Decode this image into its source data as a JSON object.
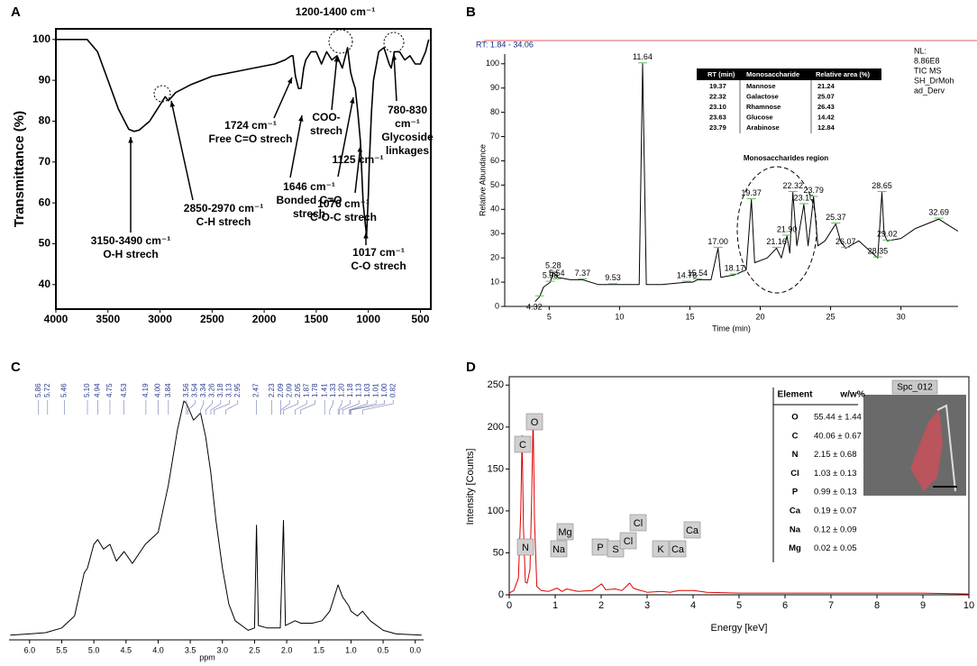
{
  "chart_data": [
    {
      "panel": "A",
      "type": "line",
      "ylabel": "Transmittance (%)",
      "color": "#000000",
      "x": [
        4000,
        3700,
        3600,
        3500,
        3400,
        3300,
        3250,
        3200,
        3100,
        3000,
        2950,
        2920,
        2850,
        2700,
        2500,
        2300,
        2100,
        1900,
        1800,
        1740,
        1724,
        1700,
        1670,
        1646,
        1620,
        1600,
        1550,
        1500,
        1450,
        1400,
        1350,
        1300,
        1250,
        1200,
        1170,
        1150,
        1125,
        1100,
        1076,
        1050,
        1030,
        1017,
        1000,
        990,
        970,
        950,
        900,
        850,
        800,
        780,
        750,
        700,
        650,
        600,
        550,
        500,
        450,
        420
      ],
      "values": [
        100,
        100,
        97,
        90,
        83,
        78,
        77.5,
        77.8,
        80,
        84,
        86,
        85,
        87,
        89,
        91,
        92,
        93,
        94,
        95,
        96,
        96,
        91,
        88,
        88,
        93,
        95,
        97,
        97,
        94,
        97,
        95,
        96,
        93,
        98,
        92,
        90,
        88,
        82,
        75,
        60,
        55,
        52,
        62,
        70,
        82,
        90,
        97,
        98,
        94,
        93,
        97,
        97,
        95,
        96,
        94,
        94,
        97,
        100
      ],
      "xlim": [
        4000,
        400
      ],
      "ylim": [
        34,
        102.6
      ],
      "xticks": [
        4000,
        3500,
        3000,
        2500,
        2000,
        1500,
        1000,
        500
      ],
      "yticks": [
        40,
        50,
        60,
        70,
        80,
        90,
        100
      ],
      "annotations": [
        {
          "lines": [
            "3150-3490 cm⁻¹",
            "O-H strech"
          ]
        },
        {
          "lines": [
            "2850-2970 cm⁻¹",
            "C-H strech"
          ]
        },
        {
          "lines": [
            "1724 cm⁻¹",
            "Free C=O strech"
          ]
        },
        {
          "lines": [
            "1646 cm⁻¹",
            "Bonded C=O",
            "strech"
          ]
        },
        {
          "lines": [
            "1200-1400 cm⁻¹"
          ]
        },
        {
          "lines": [
            "COO-",
            "strech"
          ]
        },
        {
          "lines": [
            "1125 cm⁻¹"
          ]
        },
        {
          "lines": [
            "1076 cm⁻¹",
            "C-O-C strech"
          ]
        },
        {
          "lines": [
            "1017 cm⁻¹",
            "C-O strech"
          ]
        },
        {
          "lines": [
            "780-830",
            "cm⁻¹",
            "Glycoside",
            "linkages"
          ]
        }
      ]
    },
    {
      "panel": "B",
      "type": "line",
      "rt": "RT: 1.84 - 34.06",
      "info": [
        "NL:",
        "8.86E8",
        "TIC  MS",
        "SH_DrMoh",
        "ad_Derv"
      ],
      "xlabel": "Time (min)",
      "ylabel": "Relative Abundance",
      "color": "#000000",
      "x": [
        4.0,
        4.32,
        4.6,
        5.08,
        5.28,
        5.6,
        6.5,
        7.37,
        8.5,
        9.53,
        10.5,
        11.4,
        11.64,
        11.9,
        13,
        14.78,
        15.2,
        15.54,
        16.5,
        17.0,
        17.2,
        18.17,
        19.0,
        19.37,
        19.6,
        20.5,
        21.16,
        21.5,
        21.9,
        22.1,
        22.32,
        22.6,
        23.1,
        23.4,
        23.79,
        24.1,
        24.6,
        25.37,
        25.7,
        26.07,
        27,
        28.35,
        28.65,
        28.8,
        29.02,
        30,
        31,
        32.69,
        33.5,
        34.06
      ],
      "values": [
        2,
        4,
        8,
        10,
        14,
        12,
        11,
        11,
        9,
        9,
        9,
        9,
        100,
        9,
        9,
        10,
        10,
        11,
        11,
        24,
        12,
        13,
        15,
        44,
        18,
        20,
        24,
        20,
        29,
        22,
        47,
        25,
        42,
        25,
        45,
        25,
        27,
        34,
        27,
        24,
        27,
        20,
        47,
        30,
        27,
        28,
        32,
        36,
        33,
        31
      ],
      "xlim": [
        1.84,
        34.06
      ],
      "ylim": [
        0,
        104
      ],
      "xticks": [
        5,
        10,
        15,
        20,
        25,
        30
      ],
      "yticks": [
        0,
        10,
        20,
        30,
        40,
        50,
        60,
        70,
        80,
        90,
        100
      ],
      "peaks": [
        {
          "label": "4.32",
          "x": 4.32,
          "y": 4
        },
        {
          "label": "5.08",
          "x": 5.08,
          "y": 10
        },
        {
          "label": "5.28",
          "x": 5.28,
          "y": 14
        },
        {
          "label": "5.54",
          "x": 5.54,
          "y": 11
        },
        {
          "label": "7.37",
          "x": 7.37,
          "y": 11
        },
        {
          "label": "9.53",
          "x": 9.53,
          "y": 9
        },
        {
          "label": "11.64",
          "x": 11.64,
          "y": 100
        },
        {
          "label": "14.78",
          "x": 14.78,
          "y": 10
        },
        {
          "label": "15.54",
          "x": 15.54,
          "y": 11
        },
        {
          "label": "17.00",
          "x": 17.0,
          "y": 24
        },
        {
          "label": "18.17",
          "x": 18.17,
          "y": 13
        },
        {
          "label": "19.37",
          "x": 19.37,
          "y": 44
        },
        {
          "label": "21.16",
          "x": 21.16,
          "y": 24
        },
        {
          "label": "21.90",
          "x": 21.9,
          "y": 29
        },
        {
          "label": "22.32",
          "x": 22.32,
          "y": 47
        },
        {
          "label": "23.10",
          "x": 23.1,
          "y": 42
        },
        {
          "label": "23.79",
          "x": 23.79,
          "y": 45
        },
        {
          "label": "25.37",
          "x": 25.37,
          "y": 34
        },
        {
          "label": "26.07",
          "x": 26.07,
          "y": 24
        },
        {
          "label": "28.35",
          "x": 28.35,
          "y": 20
        },
        {
          "label": "28.65",
          "x": 28.65,
          "y": 47
        },
        {
          "label": "29.02",
          "x": 29.02,
          "y": 27
        },
        {
          "label": "32.69",
          "x": 32.69,
          "y": 36
        }
      ],
      "region_label": "Monosaccharides region",
      "table": {
        "columns": [
          "RT (min)",
          "Monosaccharide",
          "Relative area (%)"
        ],
        "rows": [
          [
            "19.37",
            "Mannose",
            "21.24"
          ],
          [
            "22.32",
            "Galactose",
            "25.07"
          ],
          [
            "23.10",
            "Rhamnose",
            "26.43"
          ],
          [
            "23.63",
            "Glucose",
            "14.42"
          ],
          [
            "23.79",
            "Arabinose",
            "12.84"
          ]
        ]
      }
    },
    {
      "panel": "C",
      "type": "line",
      "xlabel": "ppm",
      "color": "#000000",
      "x": [
        6.3,
        6.0,
        5.75,
        5.5,
        5.3,
        5.15,
        5.1,
        5.0,
        4.94,
        4.85,
        4.75,
        4.65,
        4.53,
        4.4,
        4.2,
        4.0,
        3.84,
        3.7,
        3.6,
        3.56,
        3.45,
        3.34,
        3.26,
        3.18,
        3.1,
        3.0,
        2.9,
        2.8,
        2.6,
        2.5,
        2.47,
        2.44,
        2.3,
        2.1,
        2.05,
        2.02,
        1.87,
        1.78,
        1.6,
        1.45,
        1.33,
        1.2,
        1.13,
        1.03,
        1.0,
        0.9,
        0.82,
        0.7,
        0.5,
        0.3,
        -0.1
      ],
      "values": [
        2,
        2.5,
        3,
        5,
        10,
        28,
        30,
        40,
        42,
        38,
        40,
        33,
        37,
        32,
        40,
        45,
        65,
        88,
        100,
        99,
        92,
        95,
        85,
        70,
        50,
        30,
        15,
        8,
        4,
        5,
        48,
        6,
        5,
        5,
        50,
        6,
        8,
        7,
        7,
        8,
        12,
        23,
        18,
        14,
        12,
        10,
        12,
        8,
        4,
        2.5,
        2
      ],
      "xlim": [
        6.32,
        -0.13
      ],
      "ylim": [
        0,
        100
      ],
      "xticks": [
        {
          "value": 6,
          "label": "6.0"
        },
        5.5,
        {
          "value": 5,
          "label": "5.0"
        },
        4.5,
        {
          "value": 4,
          "label": "4.0"
        },
        3.5,
        {
          "value": 3,
          "label": "3.0"
        },
        2.5,
        {
          "value": 2,
          "label": "2.0"
        },
        1.5,
        {
          "value": 1,
          "label": "1.0"
        },
        0.5,
        {
          "value": 0,
          "label": "0.0"
        }
      ],
      "peak_labels": [
        {
          "x": 5.86,
          "label": "5.86"
        },
        {
          "x": 5.72,
          "label": "5.72"
        },
        {
          "x": 5.46,
          "label": "5.46"
        },
        {
          "x": 5.1,
          "label": "5.10"
        },
        {
          "x": 4.94,
          "label": "4.94"
        },
        {
          "x": 4.75,
          "label": "4.75"
        },
        {
          "x": 4.53,
          "label": "4.53"
        },
        {
          "x": 4.19,
          "label": "4.19"
        },
        {
          "x": 4.0,
          "label": "4.00"
        },
        {
          "x": 3.84,
          "label": "3.84"
        },
        {
          "x": 3.56,
          "label": "3.56"
        },
        {
          "x": 3.54,
          "label": "3.54"
        },
        {
          "x": 3.34,
          "label": "3.34"
        },
        {
          "x": 3.26,
          "label": "3.26"
        },
        {
          "x": 3.18,
          "label": "3.18"
        },
        {
          "x": 3.13,
          "label": "3.13"
        },
        {
          "x": 2.95,
          "label": "2.95"
        },
        {
          "x": 2.47,
          "label": "2.47"
        },
        {
          "x": 2.23,
          "label": "2.23"
        },
        {
          "x": 2.09,
          "label": "2.09"
        },
        {
          "x": 2.09,
          "label": "2.09"
        },
        {
          "x": 2.05,
          "label": "2.05"
        },
        {
          "x": 1.87,
          "label": "1.87"
        },
        {
          "x": 1.78,
          "label": "1.78"
        },
        {
          "x": 1.41,
          "label": "1.41"
        },
        {
          "x": 1.33,
          "label": "1.33"
        },
        {
          "x": 1.2,
          "label": "1.20"
        },
        {
          "x": 1.18,
          "label": "1.18"
        },
        {
          "x": 1.13,
          "label": "1.13"
        },
        {
          "x": 1.03,
          "label": "1.03"
        },
        {
          "x": 1.01,
          "label": "1.01"
        },
        {
          "x": 1.0,
          "label": "1.00"
        },
        {
          "x": 0.82,
          "label": "0.82"
        }
      ]
    },
    {
      "panel": "D",
      "type": "line",
      "xlabel": "Energy [keV]",
      "ylabel": "Intensity [Counts]",
      "color": "#e00000",
      "x": [
        0,
        0.1,
        0.2,
        0.25,
        0.28,
        0.31,
        0.35,
        0.39,
        0.45,
        0.49,
        0.52,
        0.55,
        0.6,
        0.7,
        0.85,
        1.04,
        1.15,
        1.25,
        1.5,
        1.8,
        2.01,
        2.1,
        2.31,
        2.45,
        2.62,
        2.7,
        2.8,
        3.0,
        3.31,
        3.5,
        3.69,
        4.01,
        4.3,
        5,
        6,
        7,
        8,
        9,
        10
      ],
      "values": [
        2,
        5,
        20,
        100,
        190,
        80,
        15,
        14,
        30,
        120,
        215,
        90,
        10,
        5,
        4,
        8,
        4,
        7,
        4,
        5,
        13,
        6,
        7,
        5,
        14,
        8,
        6,
        3,
        4,
        3,
        5,
        5,
        3,
        2,
        2,
        2,
        2,
        2,
        1
      ],
      "xlim": [
        0,
        10
      ],
      "ylim": [
        0,
        260
      ],
      "xticks": [
        0,
        1,
        2,
        3,
        4,
        5,
        6,
        7,
        8,
        9,
        10
      ],
      "yticks": [
        0,
        50,
        100,
        150,
        200,
        250
      ],
      "element_labels": [
        "C",
        "O",
        "N",
        "Na",
        "Mg",
        "P",
        "S",
        "Cl",
        "Cl",
        "K",
        "Ca",
        "Ca"
      ],
      "table": {
        "columns": [
          "Element",
          "w/w%"
        ],
        "rows": [
          [
            "O",
            "55.44 ± 1.44"
          ],
          [
            "C",
            "40.06 ± 0.67"
          ],
          [
            "N",
            "2.15 ± 0.68"
          ],
          [
            "Cl",
            "1.03  ± 0.13"
          ],
          [
            "P",
            "0.99  ± 0.13"
          ],
          [
            "Ca",
            "0.19 ± 0.07"
          ],
          [
            "Na",
            "0.12 ± 0.09"
          ],
          [
            "Mg",
            "0.02  ± 0.05"
          ]
        ]
      },
      "image_label": "Spc_012"
    }
  ]
}
